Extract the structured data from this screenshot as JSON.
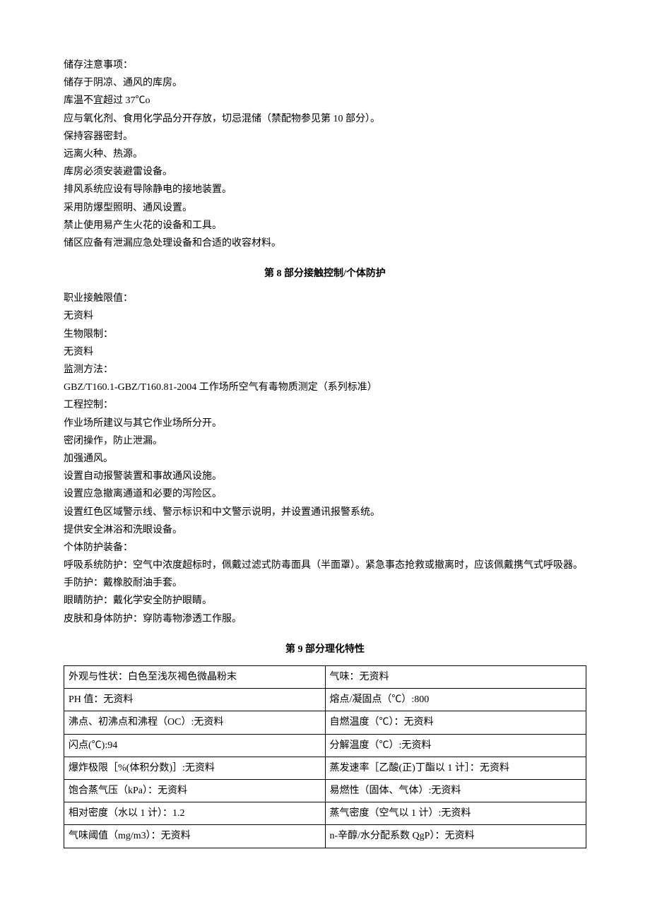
{
  "storage": {
    "title": "储存注意事项：",
    "lines": [
      "储存于阴凉、通风的库房。",
      "库温不宜超过 37℃o",
      "应与氧化剂、食用化学品分开存放，切忌混储（禁配物参见第 10 部分）。",
      "保持容器密封。",
      "远离火种、热源。",
      "库房必须安装避雷设备。",
      "排风系统应设有导除静电的接地装置。",
      "采用防爆型照明、通风设置。",
      "禁止使用易产生火花的设备和工具。",
      "储区应备有泄漏应急处理设备和合适的收容材料。"
    ]
  },
  "section8": {
    "title": "第 8 部分接触控制/个体防护",
    "occ_label": "职业接触限值：",
    "occ_value": "无资料",
    "bio_label": "生物限制：",
    "bio_value": "无资料",
    "monitor_label": "监测方法：",
    "monitor_value": "GBZ/T160.1-GBZ/T160.81-2004 工作场所空气有毒物质测定（系列标准）",
    "eng_label": "工程控制：",
    "eng_lines": [
      "作业场所建议与其它作业场所分开。",
      "密闭操作，防止泄漏。",
      "加强通风。",
      "设置自动报警装置和事故通风设施。",
      "设置应急撤离通道和必要的泻险区。",
      "设置红色区域警示线、警示标识和中文警示说明，并设置通讯报警系统。",
      "提供安全淋浴和洗眼设备。"
    ],
    "ppe_label": "个体防护装备：",
    "ppe_lines": [
      "呼吸系统防护：空气中浓度超标时，佩戴过滤式防毒面具（半面罩）。紧急事态抢救或撤离时，应该佩戴携气式呼吸器。",
      "手防护：戴橡胶耐油手套。",
      "眼睛防护：戴化学安全防护眼睛。",
      "皮肤和身体防护：穿防毒物渗透工作服。"
    ]
  },
  "section9": {
    "title": "第 9 部分理化特性",
    "rows": [
      {
        "left": "外观与性状：白色至浅灰褐色微晶粉末",
        "right": "气味：无资料"
      },
      {
        "left": "PH 值：无资料",
        "right": "熔点/凝固点（℃）:800"
      },
      {
        "left": "沸点、初沸点和沸程（OC）:无资料",
        "right": "自燃温度（℃）：无资料"
      },
      {
        "left": "闪点(℃):94",
        "right": "分解温度（℃）:无资料"
      },
      {
        "left": "爆炸极限［%(体积分数)］:无资料",
        "right": "蒸发速率［乙酸(正)丁酯以 1 计］：无资料"
      },
      {
        "left": "饱合蒸气压（kPa）：无资料",
        "right": "易燃性（固体、气体）:无资料"
      },
      {
        "left": "相对密度（水以 1 计）：1.2",
        "right": "蒸气密度（空气以 1 计）:无资料"
      },
      {
        "left": "气味阈值（mg/m3）：无资料",
        "right": "n-辛醇/水分配系数 QgP）：无资料"
      }
    ]
  }
}
